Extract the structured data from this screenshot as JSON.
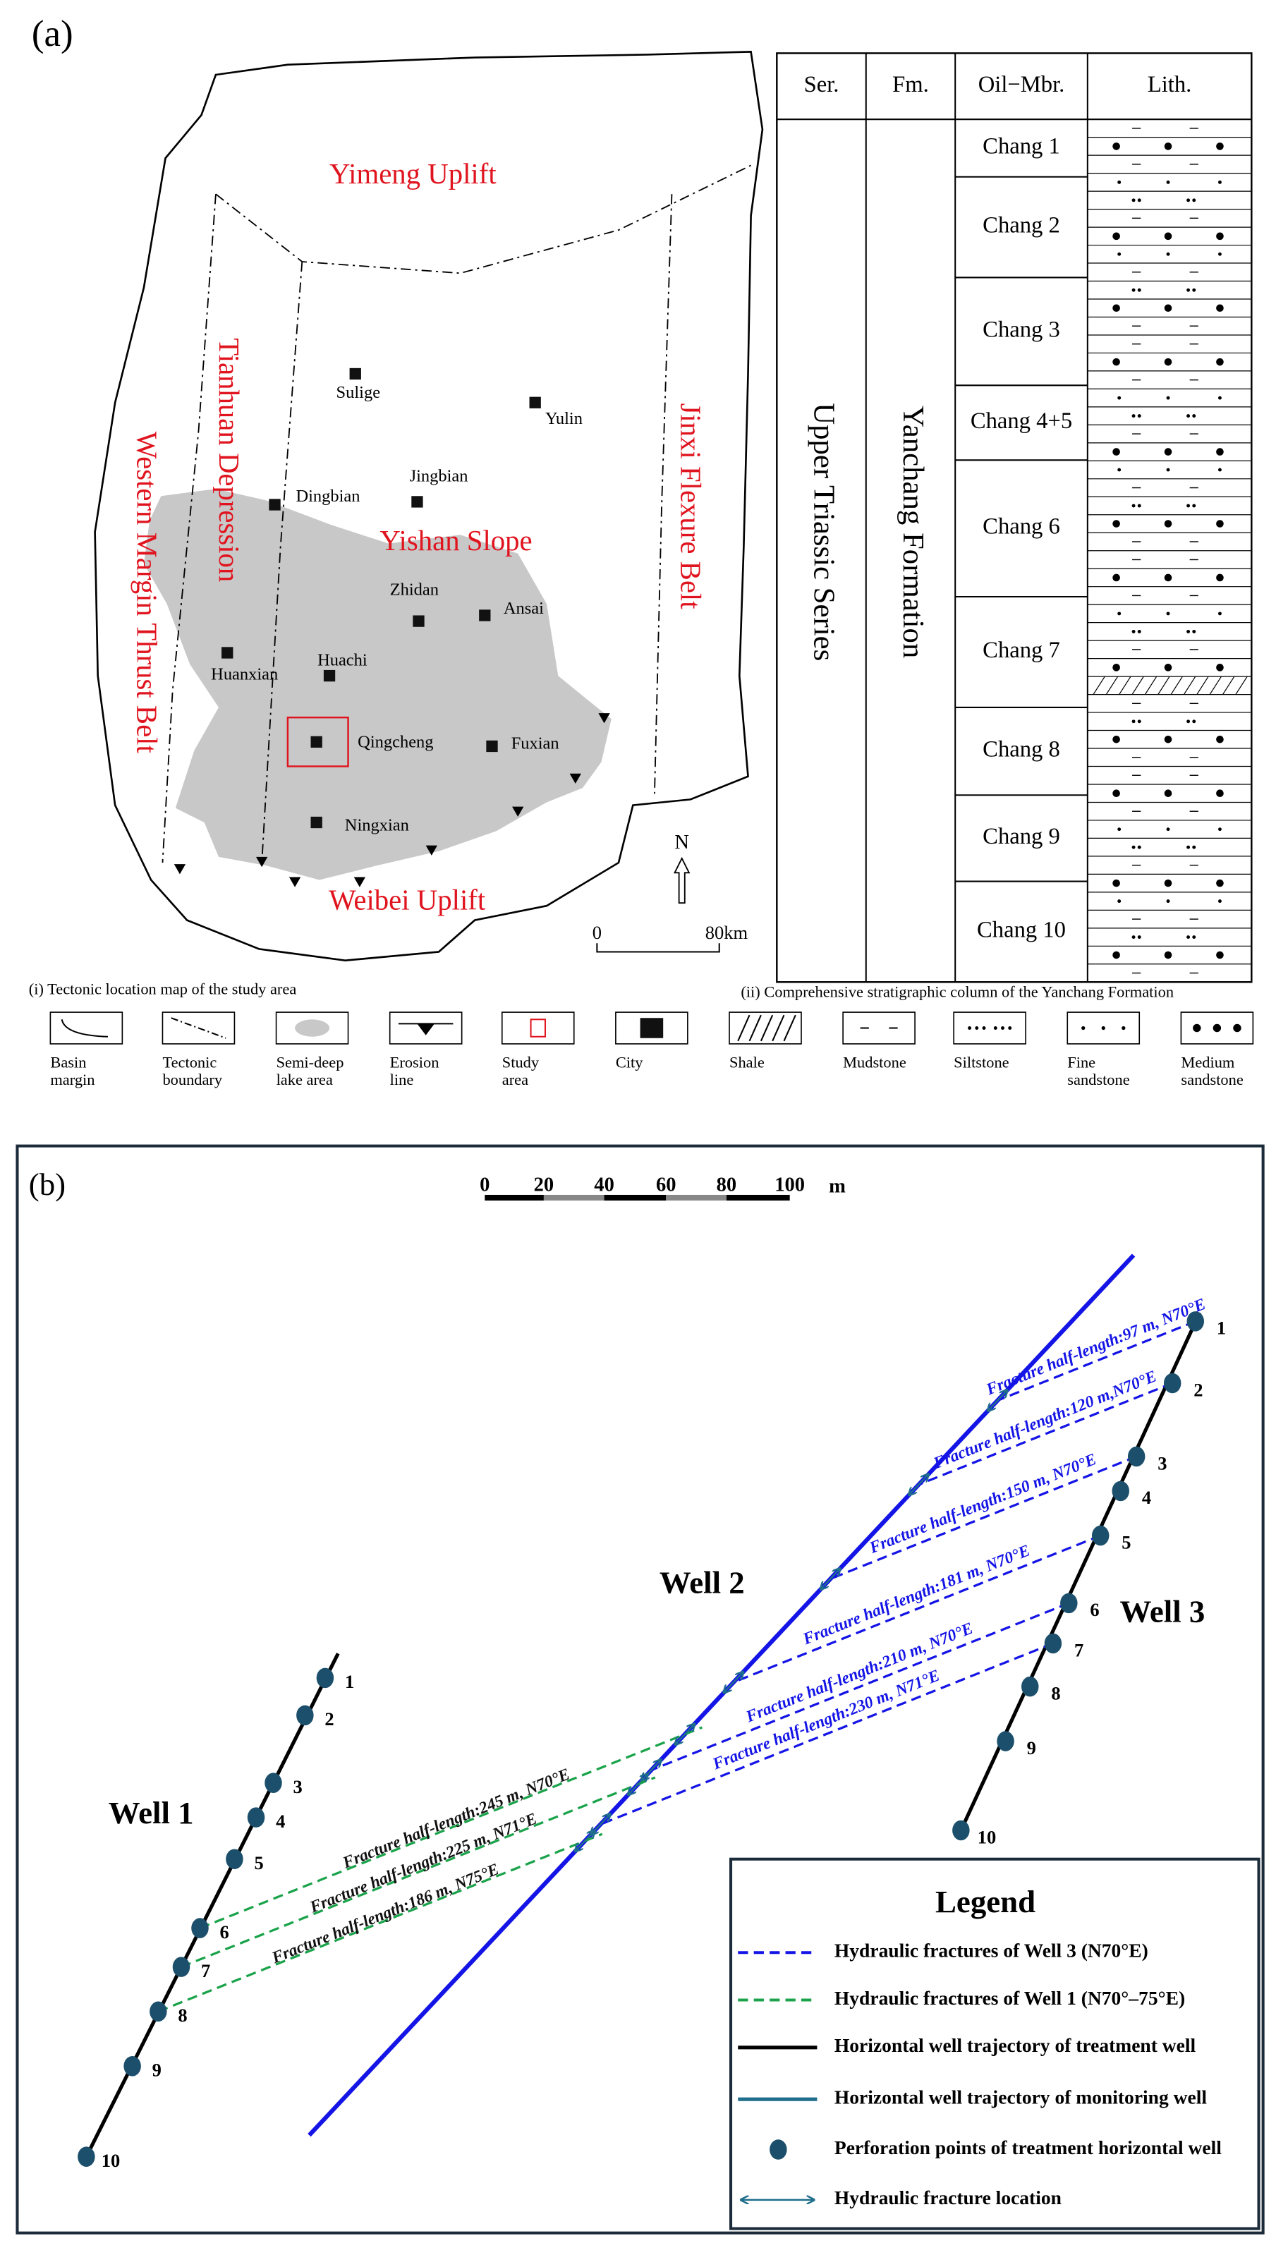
{
  "panel_a": {
    "label": "(a)",
    "map": {
      "regions": [
        "Yimeng Uplift",
        "Tianhuan Depression",
        "Western Margin Thrust Belt",
        "Yishan Slope",
        "Jinxi Flexure Belt",
        "Weibei Uplift"
      ],
      "cities": [
        "Sulige",
        "Yulin",
        "Jingbian",
        "Dingbian",
        "Zhidan",
        "Ansai",
        "Huachi",
        "Huanxian",
        "Qingcheng",
        "Fuxian",
        "Ningxian"
      ],
      "north": "N",
      "scale_start": "0",
      "scale_end": "80km",
      "caption": "(i) Tectonic  location map of the study area"
    },
    "column": {
      "headers": [
        "Ser.",
        "Fm.",
        "Oil−Mbr.",
        "Lith."
      ],
      "series": "Upper Triassic Series",
      "formation": "Yanchang Formation",
      "members": [
        "Chang 1",
        "Chang 2",
        "Chang 3",
        "Chang 4+5",
        "Chang 6",
        "Chang 7",
        "Chang 8",
        "Chang 9",
        "Chang 10"
      ],
      "caption": "(ii) Comprehensive stratigraphic column of the Yanchang Formation"
    },
    "legend": [
      [
        "Basin",
        "margin"
      ],
      [
        "Tectonic",
        "boundary"
      ],
      [
        "Semi-deep",
        "lake area"
      ],
      [
        "Erosion",
        "line"
      ],
      [
        "Study",
        "area"
      ],
      [
        "City"
      ],
      [
        "Shale"
      ],
      [
        "Mudstone"
      ],
      [
        "Siltstone"
      ],
      [
        "Fine",
        "sandstone"
      ],
      [
        "Medium",
        "sandstone"
      ]
    ]
  },
  "panel_b": {
    "label": "(b)",
    "scale": [
      "0",
      "20",
      "40",
      "60",
      "80",
      "100"
    ],
    "scale_unit": "m",
    "wells": [
      "Well 1",
      "Well 2",
      "Well 3"
    ],
    "well1_points": [
      "1",
      "2",
      "3",
      "4",
      "5",
      "6",
      "7",
      "8",
      "9",
      "10"
    ],
    "well3_points": [
      "1",
      "2",
      "3",
      "4",
      "5",
      "6",
      "7",
      "8",
      "9",
      "10"
    ],
    "well3_fractures": [
      "Fracture half-length:97 m, N70°E",
      "Fracture half-length:120 m,N70°E",
      "Fracture half-length:150 m, N70°E",
      "Fracture half-length:181 m, N70°E",
      "Fracture half-length:210 m, N70°E",
      "Fracture half-length:230 m, N71°E"
    ],
    "well1_fractures": [
      "Fracture half-length:245 m, N70°E",
      "Fracture half-length:225 m, N71°E",
      "Fracture half-length:186 m, N75°E"
    ],
    "legend": {
      "title": "Legend",
      "items": [
        "Hydraulic fractures of Well 3 (N70°E)",
        "Hydraulic fractures of Well 1 (N70°–75°E)",
        "Horizontal well trajectory of treatment well",
        "Horizontal well trajectory of monitoring well",
        "Perforation points of treatment horizontal well",
        "Hydraulic fracture location"
      ]
    }
  }
}
